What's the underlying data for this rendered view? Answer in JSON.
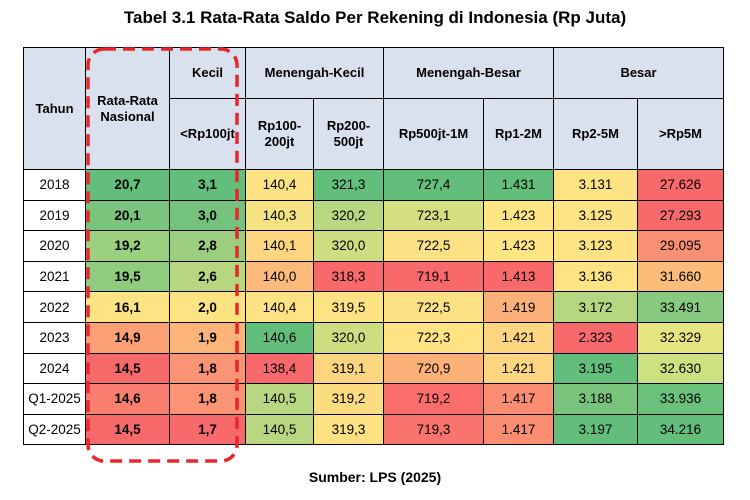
{
  "title": "Tabel 3.1 Rata-Rata Saldo Per Rekening di Indonesia (Rp Juta)",
  "footer": "Sumber: LPS (2025)",
  "headers": {
    "tahun": "Tahun",
    "nasional": "Rata-Rata Nasional",
    "kecil": "Kecil",
    "menengah_kecil": "Menengah-Kecil",
    "menengah_besar": "Menengah-Besar",
    "besar": "Besar",
    "sub": [
      "<Rp100jt",
      "Rp100-200jt",
      "Rp200-500jt",
      "Rp500jt-1M",
      "Rp1-2M",
      "Rp2-5M",
      ">Rp5M"
    ]
  },
  "rows": [
    {
      "year": "2018",
      "cells": [
        "20,7",
        "3,1",
        "140,4",
        "321,3",
        "727,4",
        "1.431",
        "3.131",
        "27.626"
      ],
      "colors": [
        "#63be7b",
        "#63be7b",
        "#fde383",
        "#63be7b",
        "#63be7b",
        "#63be7b",
        "#fde383",
        "#f8696b"
      ]
    },
    {
      "year": "2019",
      "cells": [
        "20,1",
        "3,0",
        "140,3",
        "320,2",
        "723,1",
        "1.423",
        "3.125",
        "27.293"
      ],
      "colors": [
        "#7ac57d",
        "#74c27c",
        "#f4e283",
        "#b7d780",
        "#d4df82",
        "#ffe583",
        "#fde383",
        "#f8696b"
      ]
    },
    {
      "year": "2020",
      "cells": [
        "19,2",
        "2,8",
        "140,1",
        "320,0",
        "722,5",
        "1.423",
        "3.123",
        "29.095"
      ],
      "colors": [
        "#9bd07f",
        "#9bcf7f",
        "#fed680",
        "#cfdd81",
        "#fbe183",
        "#ffe583",
        "#fde383",
        "#fa9073"
      ]
    },
    {
      "year": "2021",
      "cells": [
        "19,5",
        "2,6",
        "140,0",
        "318,3",
        "719,1",
        "1.413",
        "3.136",
        "31.660"
      ],
      "colors": [
        "#90cc7e",
        "#b6d780",
        "#fcbb7b",
        "#f8696b",
        "#f8696b",
        "#f8696b",
        "#fde383",
        "#fcbd7b"
      ]
    },
    {
      "year": "2022",
      "cells": [
        "16,1",
        "2,0",
        "140,4",
        "319,5",
        "722,5",
        "1.419",
        "3.172",
        "33.491"
      ],
      "colors": [
        "#fee382",
        "#fee382",
        "#fde383",
        "#fde383",
        "#fbe183",
        "#fbb078",
        "#b5d680",
        "#87c97e"
      ]
    },
    {
      "year": "2023",
      "cells": [
        "14,9",
        "1,9",
        "140,6",
        "320,0",
        "722,3",
        "1.421",
        "2.323",
        "32.329"
      ],
      "colors": [
        "#fca076",
        "#fcb479",
        "#63be7b",
        "#cfdd81",
        "#fee283",
        "#fed581",
        "#f8696b",
        "#e7e582"
      ]
    },
    {
      "year": "2024",
      "cells": [
        "14,5",
        "1,8",
        "138,4",
        "319,1",
        "720,9",
        "1.421",
        "3.195",
        "32.630"
      ],
      "colors": [
        "#f8696b",
        "#fa9474",
        "#f8696b",
        "#fbd580",
        "#fcb179",
        "#fed581",
        "#63be7b",
        "#cde082"
      ]
    },
    {
      "year": "Q1-2025",
      "cells": [
        "14,6",
        "1,8",
        "140,5",
        "319,2",
        "719,2",
        "1.417",
        "3.188",
        "33.936"
      ],
      "colors": [
        "#fa7e70",
        "#fa9474",
        "#b8d780",
        "#fcdc81",
        "#f96e6c",
        "#fa8d72",
        "#79c47c",
        "#6bc07b"
      ]
    },
    {
      "year": "Q2-2025",
      "cells": [
        "14,5",
        "1,7",
        "140,5",
        "319,3",
        "719,3",
        "1.417",
        "3.197",
        "34.216"
      ],
      "colors": [
        "#f8696b",
        "#f8696b",
        "#b8d780",
        "#fde183",
        "#f9746e",
        "#fa8d72",
        "#63be7b",
        "#63be7b"
      ]
    }
  ]
}
